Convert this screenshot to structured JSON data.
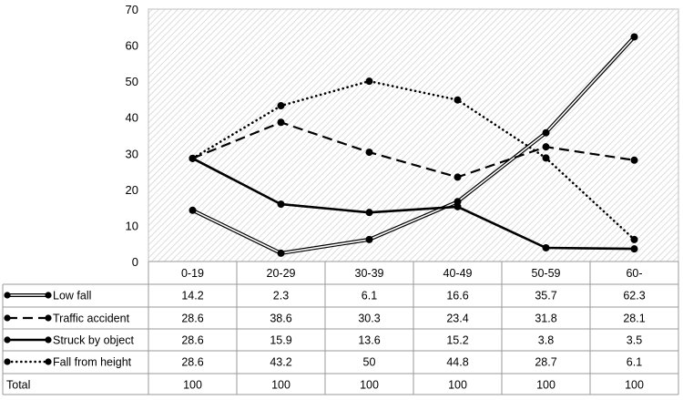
{
  "chart_data": {
    "type": "line",
    "categories": [
      "0-19",
      "20-29",
      "30-39",
      "40-49",
      "50-59",
      "60-"
    ],
    "ylim": [
      0,
      70
    ],
    "yticks": [
      0,
      10,
      20,
      30,
      40,
      50,
      60,
      70
    ],
    "grid": "hatched plot area, no gridlines",
    "legend": "data table below the plot",
    "series": [
      {
        "name": "Low fall",
        "style": "double-line",
        "color": "#000000",
        "values": [
          14.2,
          2.3,
          6.1,
          16.6,
          35.7,
          62.3
        ]
      },
      {
        "name": "Traffic accident",
        "style": "dashed",
        "color": "#000000",
        "values": [
          28.6,
          38.6,
          30.3,
          23.4,
          31.8,
          28.1
        ]
      },
      {
        "name": "Struck by object",
        "style": "solid-thick",
        "color": "#000000",
        "values": [
          28.6,
          15.9,
          13.6,
          15.2,
          3.8,
          3.5
        ]
      },
      {
        "name": "Fall from height",
        "style": "dotted",
        "color": "#000000",
        "values": [
          28.6,
          43.2,
          50,
          44.8,
          28.7,
          6.1
        ]
      }
    ],
    "table": {
      "rows": [
        {
          "label": "Low fall",
          "cells": [
            "14.2",
            "2.3",
            "6.1",
            "16.6",
            "35.7",
            "62.3"
          ]
        },
        {
          "label": "Traffic accident",
          "cells": [
            "28.6",
            "38.6",
            "30.3",
            "23.4",
            "31.8",
            "28.1"
          ]
        },
        {
          "label": "Struck by object",
          "cells": [
            "28.6",
            "15.9",
            "13.6",
            "15.2",
            "3.8",
            "3.5"
          ]
        },
        {
          "label": "Fall from height",
          "cells": [
            "28.6",
            "43.2",
            "50",
            "44.8",
            "28.7",
            "6.1"
          ]
        },
        {
          "label": "Total",
          "cells": [
            "100",
            "100",
            "100",
            "100",
            "100",
            "100"
          ]
        }
      ]
    }
  }
}
